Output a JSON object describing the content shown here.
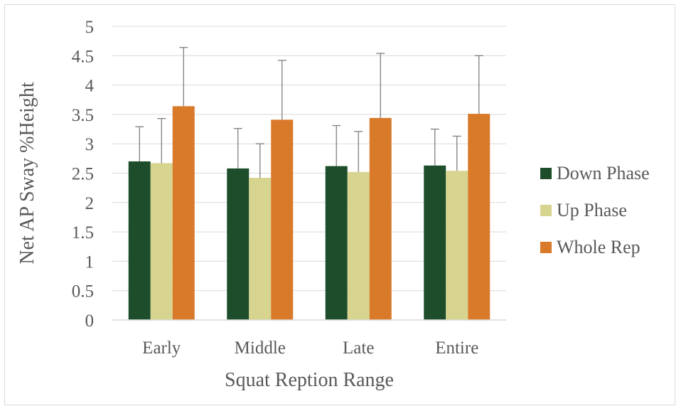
{
  "chart_data": {
    "type": "bar",
    "title": "",
    "xlabel": "Squat Reption Range",
    "ylabel": "Net AP Sway %Height",
    "ylim": [
      0,
      5
    ],
    "yticks": [
      0,
      0.5,
      1,
      1.5,
      2,
      2.5,
      3,
      3.5,
      4,
      4.5,
      5
    ],
    "ytick_labels": [
      "0",
      "0.5",
      "1",
      "1.5",
      "2",
      "2.5",
      "3",
      "3.5",
      "4",
      "4.5",
      "5"
    ],
    "grid": true,
    "legend_position": "right",
    "categories": [
      "Early",
      "Middle",
      "Late",
      "Entire"
    ],
    "series": [
      {
        "name": "Down Phase",
        "color": "#1e4d2b",
        "values": [
          2.7,
          2.58,
          2.62,
          2.63
        ],
        "error": [
          0.59,
          0.68,
          0.69,
          0.62
        ]
      },
      {
        "name": "Up Phase",
        "color": "#d6d48e",
        "values": [
          2.67,
          2.42,
          2.52,
          2.54
        ],
        "error": [
          0.76,
          0.58,
          0.69,
          0.59
        ]
      },
      {
        "name": "Whole Rep",
        "color": "#d97a2b",
        "values": [
          3.64,
          3.41,
          3.44,
          3.51
        ],
        "error": [
          1.0,
          1.01,
          1.1,
          0.99
        ]
      }
    ]
  }
}
